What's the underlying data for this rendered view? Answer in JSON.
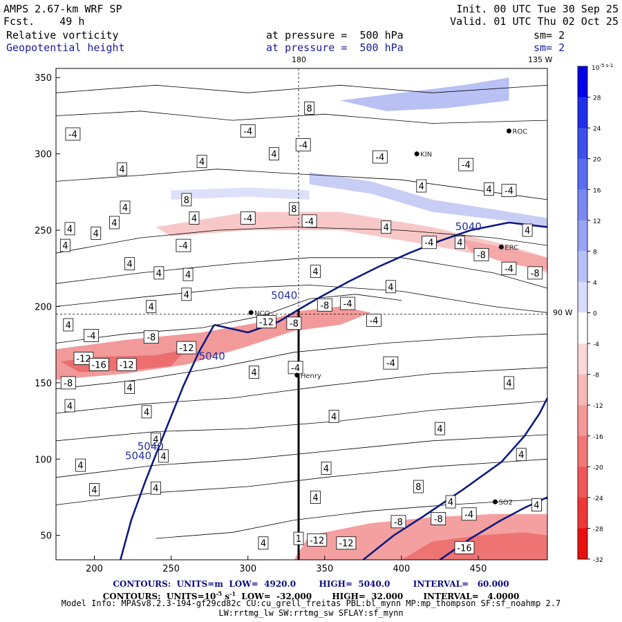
{
  "header": {
    "model": "AMPS 2.67-km WRF SP",
    "forecast": "Fcst.    49 h",
    "init": "Init. 00 UTC Tue 30 Sep 25",
    "valid": "Valid. 01 UTC Thu 02 Oct 25",
    "field1": "Relative vorticity",
    "field1_level": "at pressure =  500 hPa",
    "field1_sm": "sm= 2",
    "field2": "Geopotential height",
    "field2_level": "at pressure =  500 hPa",
    "field2_sm": "sm= 2"
  },
  "footer": {
    "line1": "CONTOURS:  UNITS=m  LOW=  4920.0        HIGH=  5040.0        INTERVAL=   60.000",
    "line2_a": "CONTOURS:  UNITS=10",
    "line2_exp": "-5",
    "line2_b": " s",
    "line2_exp2": "-1",
    "line2_c": "  LOW=  -32.000       HIGH=  32.000       INTERVAL=   4.0000",
    "line3": "Model Info: MPASv8.2.3-194-gf29cd82c CU:cu_grell_freitas PBL:bl_mynn MP:mp_thompson SF:sf_noahmp 2.7",
    "line4": "LW:rrtmg_lw SW:rrtmg_sw SFLAY:sf_mynn"
  },
  "chart_data": {
    "type": "heatmap",
    "title": "Relative vorticity / Geopotential height at 500 hPa",
    "xlim": [
      175,
      495
    ],
    "ylim": [
      34,
      356
    ],
    "xticks": [
      200,
      250,
      300,
      350,
      400,
      450
    ],
    "yticks": [
      50,
      100,
      150,
      200,
      250,
      300,
      350
    ],
    "colorbar": {
      "unit_label": "10",
      "unit_exp": "-5 s-1",
      "ticks": [
        32,
        28,
        24,
        20,
        16,
        12,
        8,
        4,
        0,
        -4,
        -8,
        -12,
        -16,
        -20,
        -24,
        -28,
        -32
      ],
      "colors_top_to_bottom": [
        "#0000e8",
        "#2030ea",
        "#3c50ec",
        "#5a6cef",
        "#7a88f2",
        "#98a4f5",
        "#b8c0f8",
        "#d8dcfb",
        "#ffffff",
        "#ffffff",
        "#fbd8d8",
        "#f8b8b8",
        "#f59898",
        "#f27878",
        "#ef5858",
        "#ec3838",
        "#e81010"
      ]
    },
    "geo_labels": {
      "lon_180": "180",
      "lon_135w": "135 W",
      "lon_90w": "90 W"
    },
    "stations": [
      {
        "name": "ROC",
        "x": 470,
        "y": 315
      },
      {
        "name": "KIN",
        "x": 410,
        "y": 300
      },
      {
        "name": "ERC",
        "x": 465,
        "y": 239
      },
      {
        "name": "NCO",
        "x": 302,
        "y": 196
      },
      {
        "name": "Henry",
        "x": 332,
        "y": 155
      },
      {
        "name": "SO2",
        "x": 461,
        "y": 72
      }
    ],
    "vertical_section": {
      "x": 333,
      "y_top": 198,
      "y_bottom": 34
    },
    "height_5040_label": "5040",
    "height_contours": [
      {
        "name": "5040-west",
        "points": [
          [
            217,
            34
          ],
          [
            224,
            60
          ],
          [
            233,
            85
          ],
          [
            242,
            108
          ],
          [
            250,
            128
          ],
          [
            258,
            148
          ],
          [
            268,
            170
          ],
          [
            278,
            188
          ]
        ]
      },
      {
        "name": "5040-main",
        "points": [
          [
            278,
            188
          ],
          [
            300,
            183
          ],
          [
            320,
            190
          ],
          [
            333,
            198
          ],
          [
            345,
            205
          ],
          [
            365,
            216
          ],
          [
            385,
            226
          ],
          [
            405,
            235
          ],
          [
            425,
            243
          ],
          [
            445,
            250
          ],
          [
            470,
            255
          ],
          [
            495,
            252
          ]
        ]
      },
      {
        "name": "5040-east-south",
        "points": [
          [
            375,
            34
          ],
          [
            395,
            50
          ],
          [
            415,
            63
          ],
          [
            440,
            80
          ],
          [
            465,
            98
          ],
          [
            480,
            115
          ],
          [
            490,
            130
          ],
          [
            495,
            140
          ]
        ]
      },
      {
        "name": "5040-se",
        "points": [
          [
            425,
            34
          ],
          [
            445,
            48
          ],
          [
            465,
            60
          ],
          [
            480,
            68
          ],
          [
            495,
            75
          ]
        ]
      }
    ],
    "vorticity_labels": [
      {
        "v": "-4",
        "x": 186,
        "y": 313
      },
      {
        "v": "-4",
        "x": 300,
        "y": 315
      },
      {
        "v": "-4",
        "x": 336,
        "y": 306
      },
      {
        "v": "4",
        "x": 317,
        "y": 300
      },
      {
        "v": "4",
        "x": 270,
        "y": 295
      },
      {
        "v": "4",
        "x": 218,
        "y": 290
      },
      {
        "v": "8",
        "x": 340,
        "y": 330
      },
      {
        "v": "-4",
        "x": 386,
        "y": 298
      },
      {
        "v": "4",
        "x": 413,
        "y": 279
      },
      {
        "v": "-4",
        "x": 442,
        "y": 293
      },
      {
        "v": "4",
        "x": 457,
        "y": 277
      },
      {
        "v": "-4",
        "x": 470,
        "y": 276
      },
      {
        "v": "8",
        "x": 260,
        "y": 270
      },
      {
        "v": "8",
        "x": 330,
        "y": 264
      },
      {
        "v": "4",
        "x": 220,
        "y": 265
      },
      {
        "v": "-4",
        "x": 300,
        "y": 258
      },
      {
        "v": "-4",
        "x": 340,
        "y": 256
      },
      {
        "v": "4",
        "x": 265,
        "y": 258
      },
      {
        "v": "4",
        "x": 213,
        "y": 255
      },
      {
        "v": "4",
        "x": 201,
        "y": 248
      },
      {
        "v": "4",
        "x": 184,
        "y": 251
      },
      {
        "v": "4",
        "x": 390,
        "y": 252
      },
      {
        "v": "4",
        "x": 482,
        "y": 250
      },
      {
        "v": "4",
        "x": 181,
        "y": 240
      },
      {
        "v": "-4",
        "x": 258,
        "y": 240
      },
      {
        "v": "4",
        "x": 223,
        "y": 228
      },
      {
        "v": "4",
        "x": 242,
        "y": 222
      },
      {
        "v": "4",
        "x": 261,
        "y": 221
      },
      {
        "v": "-4",
        "x": 418,
        "y": 242
      },
      {
        "v": "4",
        "x": 438,
        "y": 242
      },
      {
        "v": "-8",
        "x": 452,
        "y": 234
      },
      {
        "v": "-4",
        "x": 470,
        "y": 225
      },
      {
        "v": "-8",
        "x": 487,
        "y": 222
      },
      {
        "v": "4",
        "x": 344,
        "y": 223
      },
      {
        "v": "4",
        "x": 260,
        "y": 208
      },
      {
        "v": "4",
        "x": 393,
        "y": 213
      },
      {
        "v": "4",
        "x": 237,
        "y": 200
      },
      {
        "v": "-8",
        "x": 350,
        "y": 201
      },
      {
        "v": "-4",
        "x": 365,
        "y": 202
      },
      {
        "v": "4",
        "x": 183,
        "y": 188
      },
      {
        "v": "-4",
        "x": 198,
        "y": 181
      },
      {
        "v": "-8",
        "x": 237,
        "y": 180
      },
      {
        "v": "-12",
        "x": 260,
        "y": 173
      },
      {
        "v": "-12",
        "x": 312,
        "y": 190
      },
      {
        "v": "-8",
        "x": 330,
        "y": 189
      },
      {
        "v": "-4",
        "x": 382,
        "y": 191
      },
      {
        "v": "-12",
        "x": 193,
        "y": 166
      },
      {
        "v": "-16",
        "x": 203,
        "y": 162
      },
      {
        "v": "-12",
        "x": 221,
        "y": 162
      },
      {
        "v": "4",
        "x": 223,
        "y": 147
      },
      {
        "v": "4",
        "x": 304,
        "y": 157
      },
      {
        "v": "-4",
        "x": 331,
        "y": 160
      },
      {
        "v": "-4",
        "x": 393,
        "y": 163
      },
      {
        "v": "-8",
        "x": 183,
        "y": 150
      },
      {
        "v": "4",
        "x": 470,
        "y": 150
      },
      {
        "v": "4",
        "x": 234,
        "y": 131
      },
      {
        "v": "4",
        "x": 184,
        "y": 135
      },
      {
        "v": "4",
        "x": 356,
        "y": 128
      },
      {
        "v": "4",
        "x": 425,
        "y": 120
      },
      {
        "v": "4",
        "x": 240,
        "y": 113
      },
      {
        "v": "4",
        "x": 245,
        "y": 102
      },
      {
        "v": "4",
        "x": 478,
        "y": 103
      },
      {
        "v": "4",
        "x": 191,
        "y": 96
      },
      {
        "v": "4",
        "x": 351,
        "y": 94
      },
      {
        "v": "4",
        "x": 200,
        "y": 80
      },
      {
        "v": "4",
        "x": 240,
        "y": 81
      },
      {
        "v": "8",
        "x": 411,
        "y": 82
      },
      {
        "v": "4",
        "x": 432,
        "y": 72
      },
      {
        "v": "4",
        "x": 488,
        "y": 70
      },
      {
        "v": "4",
        "x": 344,
        "y": 75
      },
      {
        "v": "-4",
        "x": 444,
        "y": 64
      },
      {
        "v": "-8",
        "x": 398,
        "y": 59
      },
      {
        "v": "-8",
        "x": 424,
        "y": 61
      },
      {
        "v": "1",
        "x": 333,
        "y": 48
      },
      {
        "v": "-12",
        "x": 345,
        "y": 47
      },
      {
        "v": "-12",
        "x": 364,
        "y": 45
      },
      {
        "v": "-16",
        "x": 441,
        "y": 42
      },
      {
        "v": "4",
        "x": 310,
        "y": 45
      }
    ]
  }
}
